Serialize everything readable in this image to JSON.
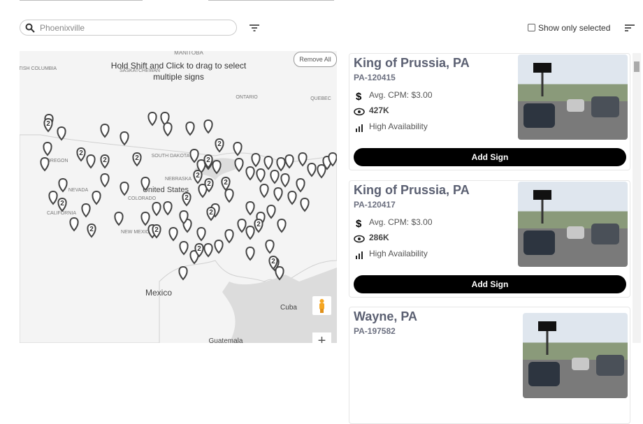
{
  "search": {
    "placeholder": "Phoenixville"
  },
  "filters": {
    "show_only_selected": "Show only selected"
  },
  "map": {
    "hint": "Hold Shift and Click to drag to select multiple signs",
    "remove_all": "Remove All",
    "labels": [
      "MANITOBA",
      "BRITISH COLUMBIA",
      "SASKATCHEWAN",
      "ONTARIO",
      "QUEBEC",
      "OREGON",
      "SOUTH DAKOTA",
      "NEVADA",
      "United States",
      "CALIFORNIA",
      "COLORADO",
      "NEBRASKA",
      "NEW MEXICO",
      "Mexico",
      "Cuba",
      "Guatemala"
    ],
    "cluster_labels": [
      "2",
      "2",
      "2",
      "2",
      "2",
      "2",
      "2",
      "2",
      "2",
      "2",
      "2",
      "2",
      "2",
      "2",
      "2",
      "2",
      "2",
      "2"
    ],
    "zoom_in": "+"
  },
  "listings": [
    {
      "title": "King of Prussia, PA",
      "id": "PA-120415",
      "cpm": "Avg. CPM: $3.00",
      "impressions": "427K",
      "availability": "High Availability",
      "button": "Add Sign"
    },
    {
      "title": "King of Prussia, PA",
      "id": "PA-120417",
      "cpm": "Avg. CPM: $3.00",
      "impressions": "286K",
      "availability": "High Availability",
      "button": "Add Sign"
    },
    {
      "title": "Wayne, PA",
      "id": "PA-197582"
    }
  ]
}
